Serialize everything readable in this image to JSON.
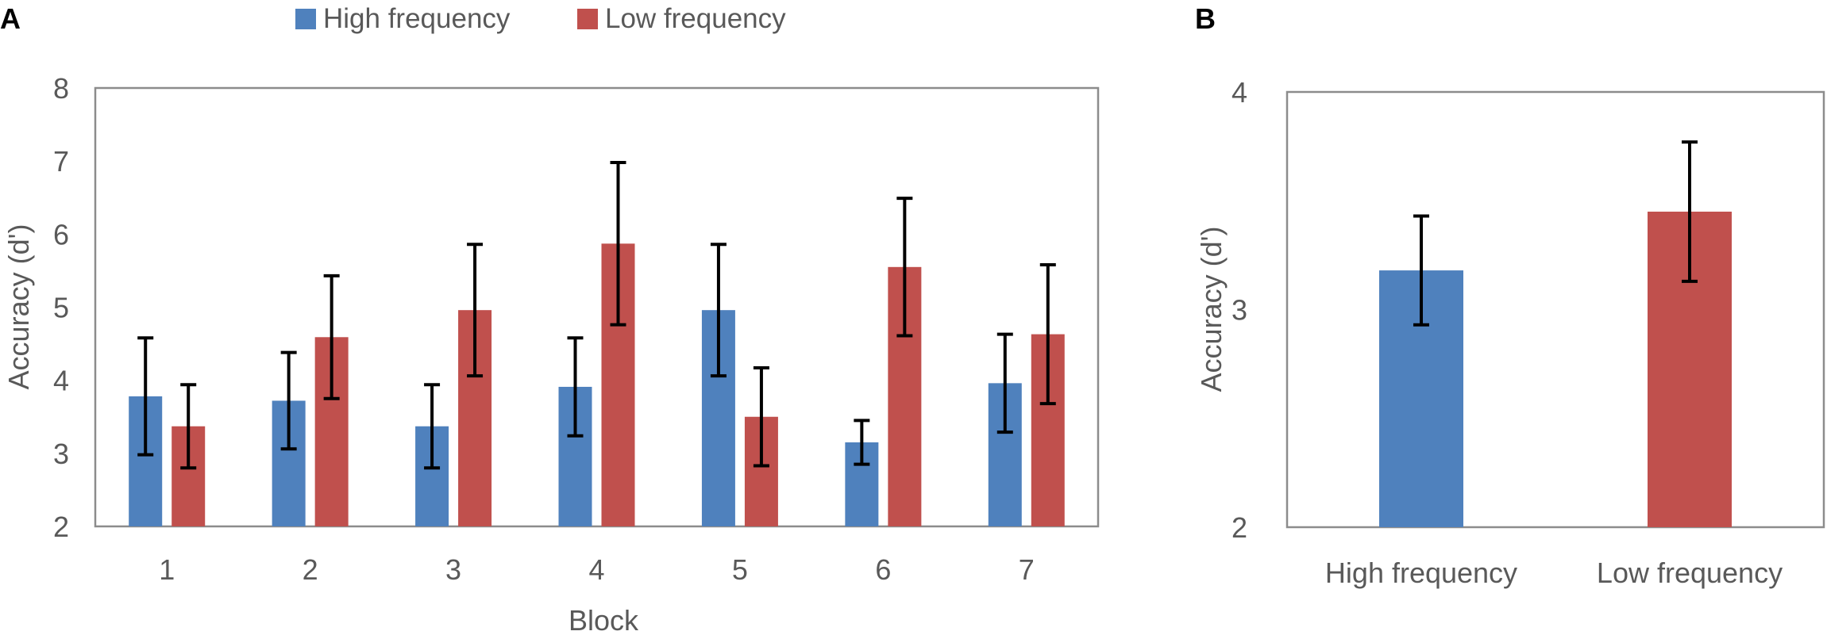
{
  "panel_labels": {
    "a": "A",
    "b": "B"
  },
  "legend": [
    {
      "name": "High frequency",
      "color": "#4f81bd"
    },
    {
      "name": "Low frequency",
      "color": "#c0504d"
    }
  ],
  "chart_data": [
    {
      "type": "bar",
      "panel": "A",
      "title": "",
      "xlabel": "Block",
      "ylabel": "Accuracy (d')",
      "ylim": [
        2,
        8
      ],
      "yticks": [
        "2",
        "3",
        "4",
        "5",
        "6",
        "7",
        "8"
      ],
      "categories": [
        "1",
        "2",
        "3",
        "4",
        "5",
        "6",
        "7"
      ],
      "legend_position": "top",
      "series": [
        {
          "name": "High frequency",
          "color": "#4f81bd",
          "values": [
            3.78,
            3.72,
            3.37,
            3.91,
            4.96,
            3.15,
            3.96
          ],
          "error": [
            0.8,
            0.66,
            0.57,
            0.67,
            0.9,
            0.3,
            0.67
          ]
        },
        {
          "name": "Low frequency",
          "color": "#c0504d",
          "values": [
            3.37,
            4.59,
            4.96,
            5.87,
            3.5,
            5.55,
            4.63
          ],
          "error": [
            0.57,
            0.84,
            0.9,
            1.11,
            0.67,
            0.94,
            0.95
          ]
        }
      ]
    },
    {
      "type": "bar",
      "panel": "B",
      "title": "",
      "xlabel": "",
      "ylabel": "Accuracy (d')",
      "ylim": [
        2,
        4
      ],
      "yticks": [
        "2",
        "3",
        "4"
      ],
      "categories": [
        "High frequency",
        "Low frequency"
      ],
      "values": [
        3.18,
        3.45
      ],
      "error": [
        0.25,
        0.32
      ],
      "colors": [
        "#4f81bd",
        "#c0504d"
      ]
    }
  ]
}
